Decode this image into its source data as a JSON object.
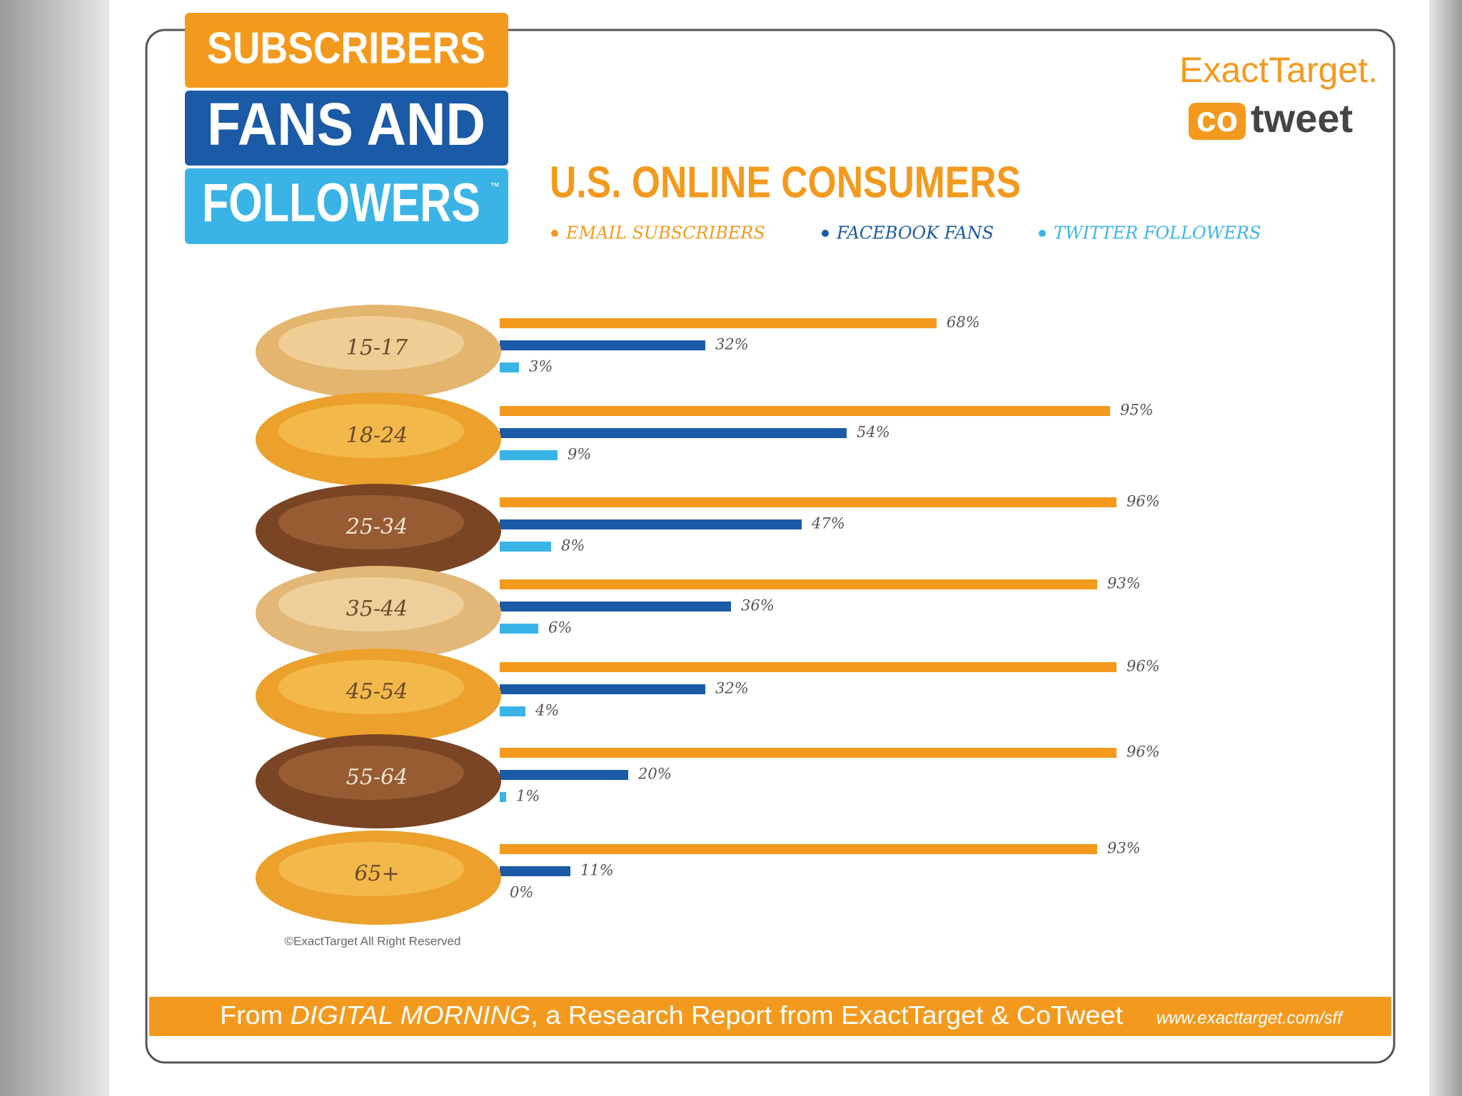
{
  "badge": {
    "lines": [
      "SUBSCRIBERS",
      "FANS AND",
      "FOLLOWERS"
    ],
    "trademark": "™"
  },
  "logo": {
    "brand": "ExactTarget.",
    "co": "co",
    "tweet": "tweet"
  },
  "chart_data": {
    "type": "bar",
    "orientation": "horizontal",
    "title": "U.S. ONLINE CONSUMERS",
    "categories": [
      "15-17",
      "18-24",
      "25-34",
      "35-44",
      "45-54",
      "55-64",
      "65+"
    ],
    "series": [
      {
        "name": "EMAIL SUBSCRIBERS",
        "color": "#f39a1e",
        "values": [
          68,
          95,
          96,
          93,
          96,
          96,
          93
        ],
        "value_labels": [
          "68%",
          "95%",
          "96%",
          "93%",
          "96%",
          "96%",
          "93%"
        ]
      },
      {
        "name": "FACEBOOK FANS",
        "color": "#1a5aa6",
        "values": [
          32,
          54,
          47,
          36,
          32,
          20,
          11
        ],
        "value_labels": [
          "32%",
          "54%",
          "47%",
          "36%",
          "32%",
          "20%",
          "11%"
        ]
      },
      {
        "name": "TWITTER FOLLOWERS",
        "color": "#3ab4e6",
        "values": [
          3,
          9,
          8,
          6,
          4,
          1,
          0
        ],
        "value_labels": [
          "3%",
          "9%",
          "8%",
          "6%",
          "4%",
          "1%",
          "0%"
        ]
      }
    ]
  },
  "copyright": "©ExactTarget All Right Reserved",
  "footer": {
    "prefix": "From ",
    "report": "DIGITAL MORNING",
    "suffix": ", a Research Report from ExactTarget & CoTweet",
    "url": "www.exacttarget.com/sff"
  }
}
